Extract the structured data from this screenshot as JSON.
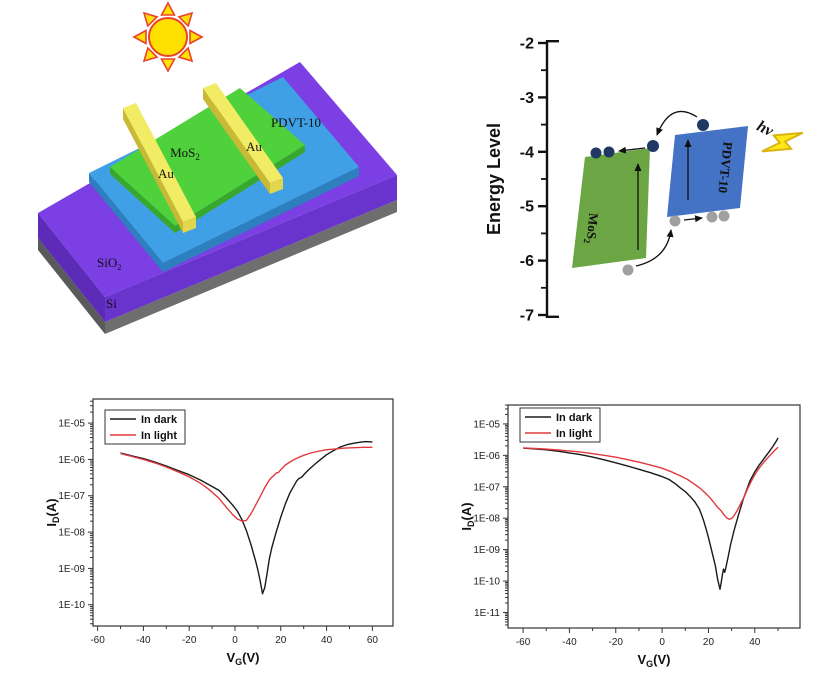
{
  "figure": {
    "background": "#ffffff"
  },
  "device_panel": {
    "labels": {
      "mos2": {
        "main": "MoS",
        "sub": "2"
      },
      "au": "Au",
      "pdvt": "PDVT-10",
      "sio2": {
        "main": "SiO",
        "sub": "2"
      },
      "si": "Si"
    },
    "colors": {
      "sio2_top": "#7B3FE4",
      "sio2_front_left": "#5C2BB8",
      "sio2_front_right": "#6933CE",
      "si_gray": "#6E6E6E",
      "si_gray_dark": "#5A5A5A",
      "pdvt_top": "#3FA0E5",
      "pdvt_front": "#2E7FBE",
      "mos2_top": "#4FD13B",
      "mos2_front": "#38A82C",
      "au_top": "#F2EC64",
      "au_side": "#C9B937",
      "au_cap": "#E2D64E",
      "sun_fill": "#FFE000",
      "sun_stroke": "#E8432C"
    }
  },
  "energy_panel": {
    "ylabel": "Energy Level",
    "ticks": [
      "-2",
      "-3",
      "-4",
      "-5",
      "-6",
      "-7"
    ],
    "mos2": {
      "main": "MoS",
      "sub": "2"
    },
    "pdvt": "PDVT-10",
    "hv": "hv",
    "colors": {
      "mos2_band": "#6BA544",
      "pdvt_band": "#4472C4",
      "electron": "#1F3864",
      "hole": "#A0A0A0",
      "bolt_fill": "#FFE81A",
      "bolt_stroke": "#D9B310"
    }
  },
  "chart_data": [
    {
      "type": "line",
      "xlabel": {
        "pre": "V",
        "sub": "G",
        "post": "(V)"
      },
      "ylabel": {
        "pre": "I",
        "sub": "D",
        "post": "(A)"
      },
      "xlim": [
        -62,
        69
      ],
      "ylim": [
        2.6e-11,
        4.6e-05
      ],
      "xticks": [
        -60,
        -40,
        -20,
        0,
        20,
        40,
        60
      ],
      "xminor_step": 10,
      "yticks": [
        1e-10,
        1e-09,
        1e-08,
        1e-07,
        1e-06,
        1e-05
      ],
      "ytick_labels": [
        "1E-10",
        "1E-09",
        "1E-08",
        "1E-07",
        "1E-06",
        "1E-05"
      ],
      "grid": false,
      "legend_position": "top-left",
      "series": [
        {
          "name": "In dark",
          "color": "#1a1a1a",
          "points": [
            [
              -50,
              1.5e-06
            ],
            [
              -45,
              1.25e-06
            ],
            [
              -40,
              1.05e-06
            ],
            [
              -35,
              8.5e-07
            ],
            [
              -30,
              6.6e-07
            ],
            [
              -25,
              5e-07
            ],
            [
              -20,
              3.8e-07
            ],
            [
              -15,
              2.7e-07
            ],
            [
              -10,
              1.8e-07
            ],
            [
              -7,
              1.4e-07
            ],
            [
              -4,
              9e-08
            ],
            [
              -1,
              5.5e-08
            ],
            [
              1,
              3.8e-08
            ],
            [
              3,
              2.2e-08
            ],
            [
              5,
              1.1e-08
            ],
            [
              7,
              4.5e-09
            ],
            [
              9,
              1.6e-09
            ],
            [
              10,
              9e-10
            ],
            [
              11,
              4.5e-10
            ],
            [
              12,
              2e-10
            ],
            [
              13,
              3e-10
            ],
            [
              14,
              7e-10
            ],
            [
              15,
              1.8e-09
            ],
            [
              16,
              3.5e-09
            ],
            [
              17,
              6e-09
            ],
            [
              18,
              1e-08
            ],
            [
              20,
              2.6e-08
            ],
            [
              22,
              6e-08
            ],
            [
              24,
              1.2e-07
            ],
            [
              26,
              2e-07
            ],
            [
              27,
              2.6e-07
            ],
            [
              28,
              3e-07
            ],
            [
              29,
              3.2e-07
            ],
            [
              31,
              4.4e-07
            ],
            [
              33,
              5.8e-07
            ],
            [
              35,
              7.5e-07
            ],
            [
              37,
              9.5e-07
            ],
            [
              40,
              1.35e-06
            ],
            [
              43,
              1.75e-06
            ],
            [
              46,
              2.2e-06
            ],
            [
              49,
              2.55e-06
            ],
            [
              52,
              2.8e-06
            ],
            [
              55,
              3e-06
            ],
            [
              57,
              3.1e-06
            ],
            [
              59,
              3.05e-06
            ],
            [
              60,
              3e-06
            ]
          ]
        },
        {
          "name": "In light",
          "color": "#E03A3E",
          "points": [
            [
              -50,
              1.45e-06
            ],
            [
              -45,
              1.2e-06
            ],
            [
              -40,
              1e-06
            ],
            [
              -35,
              8e-07
            ],
            [
              -30,
              6.2e-07
            ],
            [
              -25,
              4.6e-07
            ],
            [
              -20,
              3.3e-07
            ],
            [
              -15,
              2.2e-07
            ],
            [
              -12,
              1.6e-07
            ],
            [
              -10,
              1.25e-07
            ],
            [
              -7,
              8.5e-08
            ],
            [
              -4,
              5e-08
            ],
            [
              -1,
              3e-08
            ],
            [
              1,
              2.3e-08
            ],
            [
              3,
              2e-08
            ],
            [
              5,
              2.1e-08
            ],
            [
              7,
              3.2e-08
            ],
            [
              9,
              5.5e-08
            ],
            [
              11,
              9.5e-08
            ],
            [
              13,
              1.7e-07
            ],
            [
              15,
              2.7e-07
            ],
            [
              16,
              3.2e-07
            ],
            [
              17,
              3.6e-07
            ],
            [
              18,
              4.2e-07
            ],
            [
              19,
              4.4e-07
            ],
            [
              20,
              5.2e-07
            ],
            [
              22,
              7e-07
            ],
            [
              24,
              8.5e-07
            ],
            [
              26,
              1e-06
            ],
            [
              28,
              1.15e-06
            ],
            [
              30,
              1.3e-06
            ],
            [
              33,
              1.5e-06
            ],
            [
              36,
              1.65e-06
            ],
            [
              40,
              1.85e-06
            ],
            [
              44,
              1.95e-06
            ],
            [
              48,
              2.05e-06
            ],
            [
              52,
              2.1e-06
            ],
            [
              56,
              2.15e-06
            ],
            [
              60,
              2.15e-06
            ]
          ]
        }
      ]
    },
    {
      "type": "line",
      "xlabel": {
        "pre": "V",
        "sub": "G",
        "post": "(V)"
      },
      "ylabel": {
        "pre": "I",
        "sub": "D",
        "post": "(A)"
      },
      "xlim": [
        -66.5,
        59.5
      ],
      "ylim": [
        3.2e-12,
        4e-05
      ],
      "xticks": [
        -60,
        -40,
        -20,
        0,
        20,
        40,
        60
      ],
      "xminor_step": 10,
      "yticks": [
        1e-11,
        1e-10,
        1e-09,
        1e-08,
        1e-07,
        1e-06,
        1e-05
      ],
      "ytick_labels": [
        "1E-11",
        "1E-10",
        "1E-09",
        "1E-08",
        "1E-07",
        "1E-06",
        "1E-05"
      ],
      "grid": false,
      "legend_position": "top-left",
      "series": [
        {
          "name": "In dark",
          "color": "#1a1a1a",
          "points": [
            [
              -60,
              1.7e-06
            ],
            [
              -55,
              1.6e-06
            ],
            [
              -50,
              1.5e-06
            ],
            [
              -45,
              1.35e-06
            ],
            [
              -40,
              1.2e-06
            ],
            [
              -35,
              1.05e-06
            ],
            [
              -30,
              8.8e-07
            ],
            [
              -25,
              7.2e-07
            ],
            [
              -20,
              5.8e-07
            ],
            [
              -15,
              4.6e-07
            ],
            [
              -10,
              3.6e-07
            ],
            [
              -5,
              2.8e-07
            ],
            [
              0,
              2.1e-07
            ],
            [
              3,
              1.7e-07
            ],
            [
              6,
              1.2e-07
            ],
            [
              8,
              9e-08
            ],
            [
              10,
              7e-08
            ],
            [
              12,
              5e-08
            ],
            [
              14,
              3.4e-08
            ],
            [
              16,
              2e-08
            ],
            [
              17,
              1.3e-08
            ],
            [
              18,
              8e-09
            ],
            [
              19,
              4.5e-09
            ],
            [
              20,
              2.4e-09
            ],
            [
              21,
              1.2e-09
            ],
            [
              22,
              6e-10
            ],
            [
              23,
              3e-10
            ],
            [
              24,
              1.1e-10
            ],
            [
              25,
              5.5e-11
            ],
            [
              25.5,
              9e-11
            ],
            [
              26,
              1.6e-10
            ],
            [
              26.5,
              2.4e-10
            ],
            [
              27,
              1.9e-10
            ],
            [
              27.5,
              2.6e-10
            ],
            [
              28.5,
              6e-10
            ],
            [
              29.5,
              1.4e-09
            ],
            [
              31,
              4e-09
            ],
            [
              33,
              1.3e-08
            ],
            [
              35,
              4e-08
            ],
            [
              36.5,
              8e-08
            ],
            [
              38,
              1.6e-07
            ],
            [
              40,
              3e-07
            ],
            [
              42,
              5e-07
            ],
            [
              44,
              8e-07
            ],
            [
              46,
              1.25e-06
            ],
            [
              48,
              2e-06
            ],
            [
              49.5,
              3e-06
            ],
            [
              50,
              3.6e-06
            ]
          ]
        },
        {
          "name": "In light",
          "color": "#E03A3E",
          "points": [
            [
              -60,
              1.72e-06
            ],
            [
              -55,
              1.65e-06
            ],
            [
              -50,
              1.58e-06
            ],
            [
              -45,
              1.48e-06
            ],
            [
              -40,
              1.38e-06
            ],
            [
              -35,
              1.27e-06
            ],
            [
              -30,
              1.13e-06
            ],
            [
              -25,
              1e-06
            ],
            [
              -20,
              8.7e-07
            ],
            [
              -15,
              7.3e-07
            ],
            [
              -10,
              6.1e-07
            ],
            [
              -5,
              4.9e-07
            ],
            [
              0,
              3.9e-07
            ],
            [
              4,
              3e-07
            ],
            [
              8,
              2.2e-07
            ],
            [
              11,
              1.7e-07
            ],
            [
              14,
              1.2e-07
            ],
            [
              16,
              9.5e-08
            ],
            [
              18,
              7e-08
            ],
            [
              20,
              5e-08
            ],
            [
              22,
              3.4e-08
            ],
            [
              24,
              2.2e-08
            ],
            [
              25.5,
              1.7e-08
            ],
            [
              27,
              1.2e-08
            ],
            [
              28,
              1e-08
            ],
            [
              29,
              9.3e-09
            ],
            [
              30,
              9.8e-09
            ],
            [
              31,
              1.2e-08
            ],
            [
              32.5,
              1.8e-08
            ],
            [
              34,
              3e-08
            ],
            [
              35.5,
              5e-08
            ],
            [
              37,
              9e-08
            ],
            [
              38.5,
              1.5e-07
            ],
            [
              40,
              2.4e-07
            ],
            [
              42,
              4e-07
            ],
            [
              44,
              6.2e-07
            ],
            [
              46,
              9e-07
            ],
            [
              48,
              1.3e-06
            ],
            [
              50,
              1.8e-06
            ]
          ]
        }
      ]
    }
  ]
}
